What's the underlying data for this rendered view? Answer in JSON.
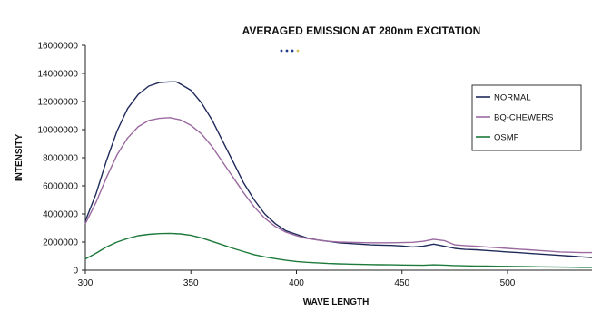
{
  "chart_data": {
    "type": "line",
    "title": "AVERAGED EMISSION AT 280nm EXCITATION",
    "xlabel": "WAVE LENGTH",
    "ylabel": "INTENSITY",
    "xlim": [
      300,
      540
    ],
    "ylim": [
      0,
      16000000
    ],
    "x_ticks": [
      300,
      350,
      400,
      450,
      500
    ],
    "y_ticks": [
      0,
      2000000,
      4000000,
      6000000,
      8000000,
      10000000,
      12000000,
      14000000,
      16000000
    ],
    "x_tick_labels": [
      "300",
      "350",
      "400",
      "450",
      "500"
    ],
    "y_tick_labels": [
      "0",
      "2000000",
      "4000000",
      "6000000",
      "8000000",
      "10000000",
      "12000000",
      "14000000",
      "16000000"
    ],
    "grid": false,
    "legend_position": "right",
    "series": [
      {
        "name": "NORMAL",
        "color": "#1f2a5a",
        "x": [
          300,
          305,
          310,
          315,
          320,
          325,
          330,
          335,
          340,
          343,
          345,
          350,
          355,
          360,
          365,
          370,
          375,
          380,
          385,
          390,
          395,
          400,
          405,
          410,
          415,
          420,
          425,
          430,
          435,
          440,
          445,
          450,
          455,
          460,
          465,
          470,
          475,
          480,
          485,
          490,
          495,
          500,
          505,
          510,
          515,
          520,
          525,
          530,
          535,
          540
        ],
        "values": [
          3500000,
          5400000,
          7800000,
          9900000,
          11500000,
          12500000,
          13100000,
          13350000,
          13400000,
          13400000,
          13250000,
          12800000,
          11900000,
          10700000,
          9200000,
          7700000,
          6200000,
          5000000,
          4000000,
          3300000,
          2800000,
          2550000,
          2300000,
          2150000,
          2050000,
          1950000,
          1900000,
          1850000,
          1800000,
          1780000,
          1760000,
          1720000,
          1650000,
          1700000,
          1850000,
          1700000,
          1550000,
          1480000,
          1450000,
          1400000,
          1350000,
          1300000,
          1250000,
          1200000,
          1150000,
          1100000,
          1050000,
          1000000,
          950000,
          900000
        ]
      },
      {
        "name": "BQ-CHEWERS",
        "color": "#9b6aa0",
        "x": [
          300,
          305,
          310,
          315,
          320,
          325,
          330,
          335,
          340,
          345,
          350,
          355,
          360,
          365,
          370,
          375,
          380,
          385,
          390,
          395,
          400,
          405,
          410,
          415,
          420,
          425,
          430,
          435,
          440,
          445,
          450,
          455,
          460,
          465,
          470,
          475,
          480,
          485,
          490,
          495,
          500,
          505,
          510,
          515,
          520,
          525,
          530,
          535,
          540
        ],
        "values": [
          3300000,
          4800000,
          6600000,
          8200000,
          9400000,
          10200000,
          10650000,
          10800000,
          10850000,
          10700000,
          10300000,
          9700000,
          8800000,
          7700000,
          6600000,
          5500000,
          4500000,
          3700000,
          3100000,
          2700000,
          2450000,
          2250000,
          2150000,
          2050000,
          2000000,
          1980000,
          1960000,
          1950000,
          1950000,
          1950000,
          1960000,
          1980000,
          2050000,
          2200000,
          2100000,
          1800000,
          1750000,
          1700000,
          1650000,
          1600000,
          1550000,
          1500000,
          1450000,
          1400000,
          1350000,
          1300000,
          1280000,
          1250000,
          1250000
        ]
      },
      {
        "name": "OSMF",
        "color": "#1d7a3a",
        "x": [
          300,
          305,
          310,
          315,
          320,
          325,
          330,
          335,
          340,
          345,
          350,
          355,
          360,
          365,
          370,
          375,
          380,
          385,
          390,
          395,
          400,
          405,
          410,
          415,
          420,
          425,
          430,
          435,
          440,
          445,
          450,
          455,
          460,
          465,
          470,
          475,
          480,
          485,
          490,
          495,
          500,
          505,
          510,
          515,
          520,
          525,
          530,
          535,
          540
        ],
        "values": [
          800000,
          1200000,
          1650000,
          2000000,
          2250000,
          2450000,
          2550000,
          2600000,
          2620000,
          2580000,
          2480000,
          2300000,
          2050000,
          1800000,
          1550000,
          1320000,
          1100000,
          950000,
          820000,
          700000,
          620000,
          560000,
          520000,
          480000,
          450000,
          430000,
          410000,
          400000,
          390000,
          380000,
          370000,
          360000,
          350000,
          380000,
          360000,
          330000,
          310000,
          300000,
          290000,
          280000,
          270000,
          260000,
          250000,
          240000,
          230000,
          220000,
          210000,
          200000,
          200000
        ]
      }
    ]
  }
}
